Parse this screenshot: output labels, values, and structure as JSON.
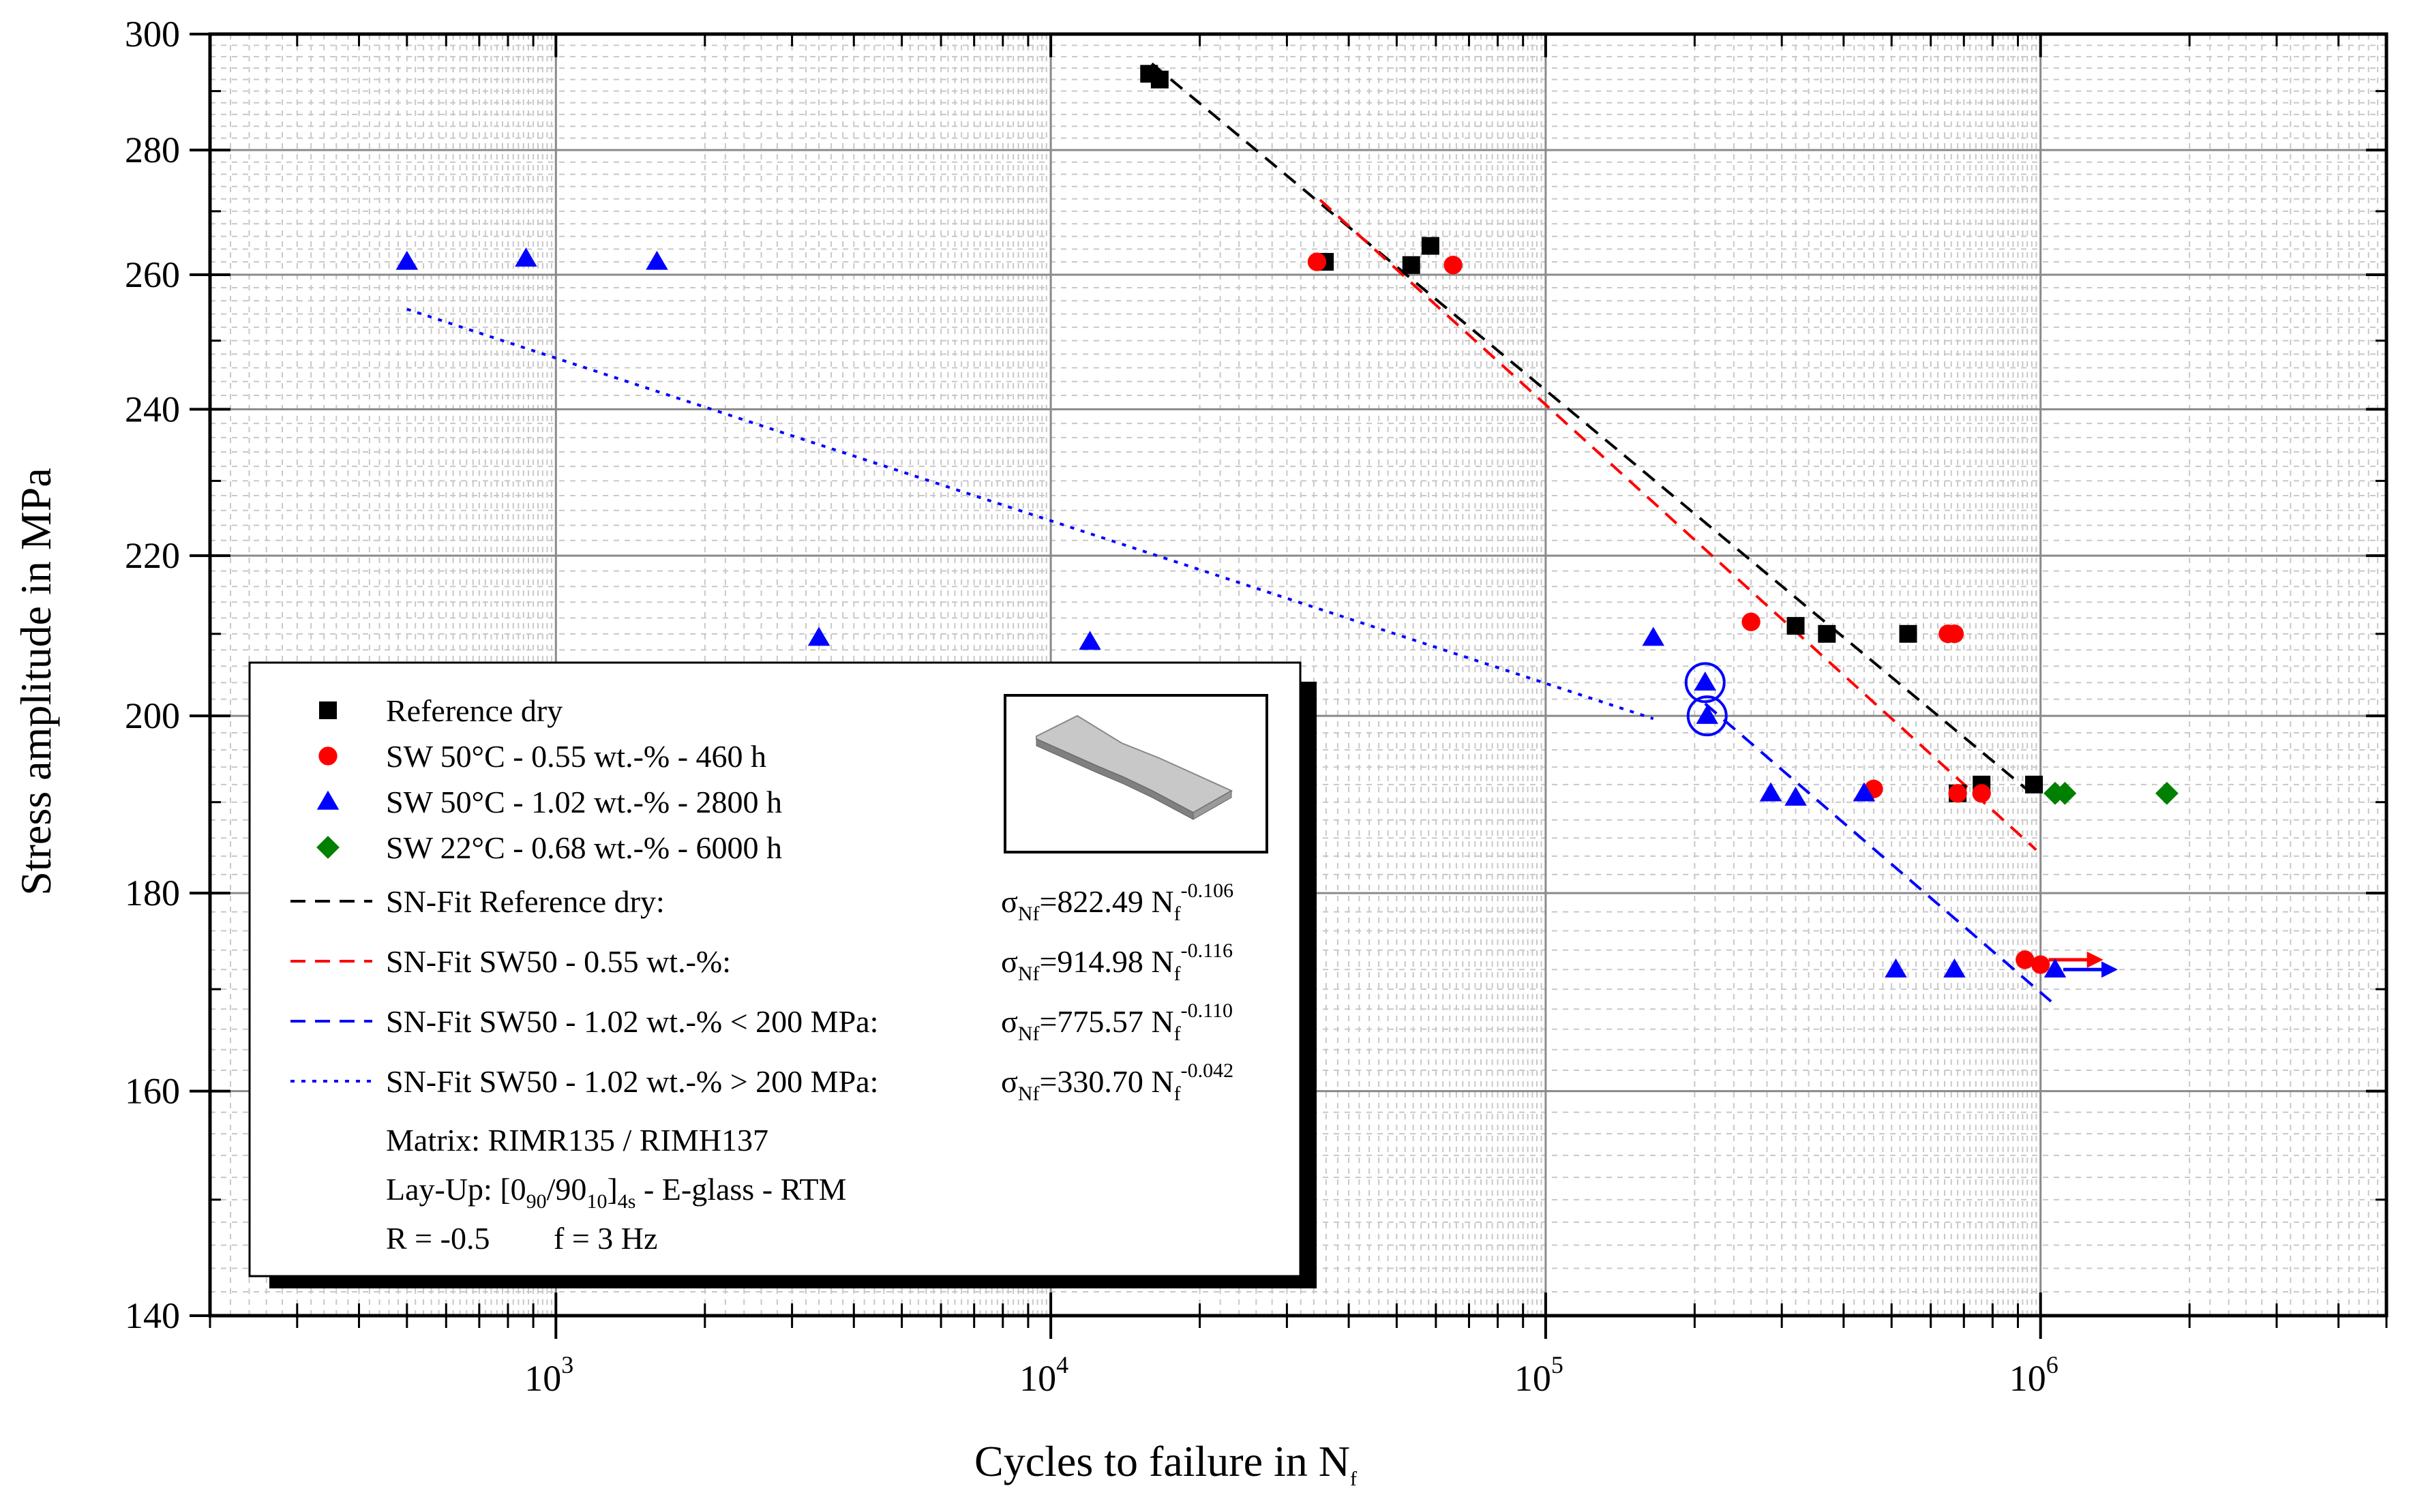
{
  "chart_data": {
    "type": "scatter",
    "xscale": "log",
    "yscale": "log",
    "xlabel": "Cycles to failure in N",
    "xlabel_sub": "f",
    "ylabel": "Stress amplitude in MPa",
    "xlim": [
      200,
      5000000
    ],
    "ylim": [
      140,
      300
    ],
    "yticks": [
      140,
      160,
      180,
      200,
      220,
      240,
      260,
      280,
      300
    ],
    "xticks": [
      1000,
      10000,
      100000,
      1000000
    ],
    "xtick_base": "10",
    "xtick_exps": [
      "3",
      "4",
      "5",
      "6"
    ],
    "grid": true,
    "series": [
      {
        "name": "Reference dry",
        "marker": "square",
        "color": "#000000",
        "points": [
          [
            15800,
            293
          ],
          [
            16600,
            292
          ],
          [
            35800,
            262
          ],
          [
            53500,
            261.5
          ],
          [
            58500,
            264.5
          ],
          [
            320000,
            211
          ],
          [
            370000,
            210
          ],
          [
            540000,
            210
          ],
          [
            680000,
            191
          ],
          [
            760000,
            192
          ],
          [
            970000,
            192
          ]
        ]
      },
      {
        "name": "SW 50°C - 0.55 wt.-% - 460 h",
        "marker": "circle",
        "color": "#ff0000",
        "points": [
          [
            34500,
            262
          ],
          [
            65000,
            261.5
          ],
          [
            260000,
            211.5
          ],
          [
            460000,
            191.5
          ],
          [
            650000,
            210
          ],
          [
            670000,
            210
          ],
          [
            680000,
            191
          ],
          [
            760000,
            191
          ],
          [
            930000,
            173
          ],
          [
            1000000,
            172.5
          ]
        ]
      },
      {
        "name": "SW 50°C - 1.02 wt.-% - 2800 h",
        "marker": "triangle",
        "color": "#0000ff",
        "points": [
          [
            500,
            262
          ],
          [
            870,
            262.5
          ],
          [
            1600,
            262
          ],
          [
            3400,
            209.5
          ],
          [
            12000,
            209
          ],
          [
            165000,
            209.5
          ],
          [
            210000,
            204
          ],
          [
            212000,
            200
          ],
          [
            285000,
            191
          ],
          [
            320000,
            190.5
          ],
          [
            440000,
            191
          ],
          [
            510000,
            172
          ],
          [
            670000,
            172
          ],
          [
            1070000,
            172
          ]
        ]
      },
      {
        "name": "SW 22°C - 0.68 wt.-% - 6000 h",
        "marker": "diamond",
        "color": "#008000",
        "points": [
          [
            1070000,
            191
          ],
          [
            1120000,
            191
          ],
          [
            1800000,
            191
          ]
        ]
      }
    ],
    "fits": [
      {
        "name": "SN-Fit Reference dry:",
        "color": "#000000",
        "style": "dashed",
        "a": 822.49,
        "b": -0.106,
        "x_range": [
          16000,
          950000
        ],
        "label": "σNf=822.49 Nf-0.106"
      },
      {
        "name": "SN-Fit SW50 - 0.55 wt.-%:",
        "color": "#ff0000",
        "style": "dashed",
        "a": 914.98,
        "b": -0.116,
        "x_range": [
          35000,
          980000
        ],
        "label": "σNf=914.98 Nf-0.116"
      },
      {
        "name": "SN-Fit SW50 - 1.02 wt.-% < 200 MPa:",
        "color": "#0000ff",
        "style": "dashed",
        "a": 775.57,
        "b": -0.11,
        "x_range": [
          210000,
          1050000
        ],
        "label": "σNf=775.57 Nf-0.110"
      },
      {
        "name": "SN-Fit SW50 - 1.02 wt.-% > 200 MPa:",
        "color": "#0000ff",
        "style": "dotted",
        "a": 330.7,
        "b": -0.042,
        "x_range": [
          500,
          165000
        ],
        "label": "σNf=330.70 Nf-0.042"
      }
    ],
    "runouts": [
      {
        "x": 1000000,
        "y": 173,
        "color": "#ff0000"
      },
      {
        "x": 1070000,
        "y": 172,
        "color": "#0000ff"
      }
    ],
    "highlight_circles": [
      {
        "x": 210000,
        "y": 204
      },
      {
        "x": 212000,
        "y": 200
      }
    ],
    "legend": {
      "placement": "bottom-left",
      "entries": [
        {
          "text": "Reference dry",
          "marker": "square",
          "color": "#000000"
        },
        {
          "text": "SW 50°C - 0.55 wt.-% - 460 h",
          "marker": "circle",
          "color": "#ff0000"
        },
        {
          "text": "SW 50°C - 1.02 wt.-% - 2800 h",
          "marker": "triangle",
          "color": "#0000ff"
        },
        {
          "text": "SW 22°C - 0.68 wt.-% - 6000 h",
          "marker": "diamond",
          "color": "#008000"
        }
      ],
      "fit_entries": [
        {
          "text": "SN-Fit Reference dry:",
          "color": "#000000",
          "style": "dashed",
          "eq_coef": "=822.49 N",
          "eq_exp": "-0.106"
        },
        {
          "text": "SN-Fit SW50 - 0.55 wt.-%:",
          "color": "#ff0000",
          "style": "dashed",
          "eq_coef": "=914.98 N",
          "eq_exp": "-0.116"
        },
        {
          "text": "SN-Fit SW50 - 1.02 wt.-% < 200 MPa:",
          "color": "#0000ff",
          "style": "dashed",
          "eq_coef": "=775.57 N",
          "eq_exp": "-0.110"
        },
        {
          "text": "SN-Fit SW50 - 1.02 wt.-% > 200 MPa:",
          "color": "#0000ff",
          "style": "dotted",
          "eq_coef": "=330.70 N",
          "eq_exp": "-0.042"
        }
      ],
      "eq_sigma": "σ",
      "eq_sigma_sub": "Nf",
      "eq_n_sub": "f",
      "matrix": "Matrix: RIMR135 / RIMH137",
      "layup_prefix": "Lay-Up: [0",
      "layup_sub1": "90",
      "layup_mid": "/90",
      "layup_sub2": "10",
      "layup_close": "]",
      "layup_sub3": "4s",
      "layup_suffix": " - E-glass - RTM",
      "r_value": "R = -0.5",
      "frequency": "f = 3 Hz"
    }
  }
}
